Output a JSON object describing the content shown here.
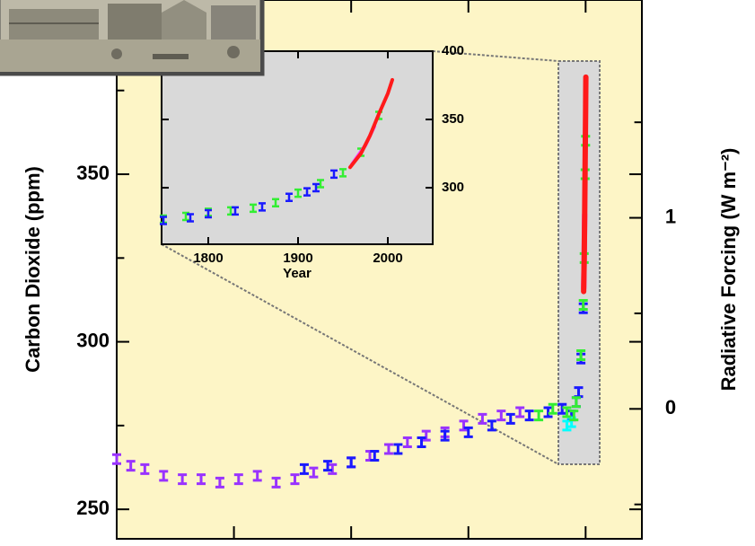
{
  "chart_data": [
    {
      "type": "scatter",
      "ylabel": "Carbon Dioxide (ppm)",
      "y2label": "Radiative Forcing (W m⁻²)",
      "xlim": [
        -8000,
        3200
      ],
      "xticks": [
        -5500,
        -3000,
        -500,
        2000
      ],
      "ylim": [
        241.2,
        402
      ],
      "yticks": [
        250,
        300,
        350
      ],
      "yminor": [
        275,
        325,
        375
      ],
      "y2lim": [
        -0.68,
        2.14
      ],
      "y2ticks": [
        0,
        1
      ],
      "y2minor": [
        -0.5,
        0.5,
        1.5
      ],
      "background": "#fdf5c6",
      "series": [
        {
          "color": "#9933ff",
          "style": "errorbar",
          "x": [
            -8000,
            -7700,
            -7400,
            -7000,
            -6600,
            -6200,
            -5800,
            -5400,
            -5000,
            -4600,
            -4200,
            -3800,
            -3400,
            -3000,
            -2600,
            -2200,
            -1800,
            -1400,
            -1000,
            -600,
            -200,
            200,
            600
          ],
          "values": [
            265,
            263,
            262,
            260,
            259,
            259,
            258,
            259,
            260,
            258,
            259,
            261,
            262,
            264,
            266,
            268,
            270,
            272,
            273,
            275,
            277,
            278,
            279
          ]
        },
        {
          "color": "#1a1aff",
          "style": "errorbar",
          "x": [
            -4000,
            -3500,
            -3000,
            -2500,
            -2000,
            -1500,
            -1000,
            -500,
            0,
            400,
            800,
            1200,
            1500,
            1700,
            1800,
            1850,
            1900,
            1950
          ],
          "values": [
            262,
            263,
            264,
            266,
            268,
            270,
            272,
            273,
            275,
            277,
            278,
            279,
            280,
            278,
            282,
            285,
            295,
            310
          ]
        },
        {
          "color": "#00ffff",
          "style": "errorbar",
          "x": [
            1600,
            1700
          ],
          "values": [
            275,
            276
          ]
        },
        {
          "color": "#33ee33",
          "style": "errorbar",
          "x": [
            1000,
            1300,
            1600,
            1750,
            1800,
            1900,
            1950,
            1970,
            1990,
            2000
          ],
          "values": [
            278,
            280,
            279,
            278,
            282,
            296,
            311,
            325,
            350,
            360
          ]
        },
        {
          "color": "#ff33ff",
          "style": "line",
          "x": [
            1960,
            1970,
            1980
          ],
          "values": [
            316,
            326,
            338
          ]
        },
        {
          "color": "#ff1a1a",
          "style": "line",
          "x": [
            1958,
            1970,
            1980,
            1990,
            2000,
            2005
          ],
          "values": [
            315,
            325,
            338,
            354,
            369,
            379
          ]
        }
      ]
    },
    {
      "type": "scatter",
      "xlabel": "Year",
      "xlim": [
        1748,
        2050
      ],
      "xticks": [
        1800,
        1900,
        2000
      ],
      "ylim": [
        258.6,
        400
      ],
      "yticks": [
        300,
        350,
        400
      ],
      "background": "#d9d9d9",
      "series": [
        {
          "color": "#33ee33",
          "style": "errorbar",
          "x": [
            1750,
            1775,
            1800,
            1825,
            1850,
            1875,
            1900,
            1925,
            1950,
            1970,
            1990
          ],
          "values": [
            277,
            279,
            282,
            283,
            285,
            289,
            296,
            303,
            311,
            326,
            353
          ]
        },
        {
          "color": "#1a1aff",
          "style": "errorbar",
          "x": [
            1750,
            1780,
            1800,
            1830,
            1860,
            1890,
            1910,
            1920,
            1940
          ],
          "values": [
            276,
            278,
            281,
            283,
            286,
            293,
            297,
            300,
            310
          ]
        },
        {
          "color": "#ff33ff",
          "style": "line",
          "x": [
            1960,
            1975,
            1985
          ],
          "values": [
            317,
            331,
            345
          ]
        },
        {
          "color": "#ff1a1a",
          "style": "line",
          "x": [
            1958,
            1970,
            1980,
            1990,
            2000,
            2005
          ],
          "values": [
            315,
            325,
            338,
            354,
            369,
            379
          ]
        }
      ]
    }
  ]
}
